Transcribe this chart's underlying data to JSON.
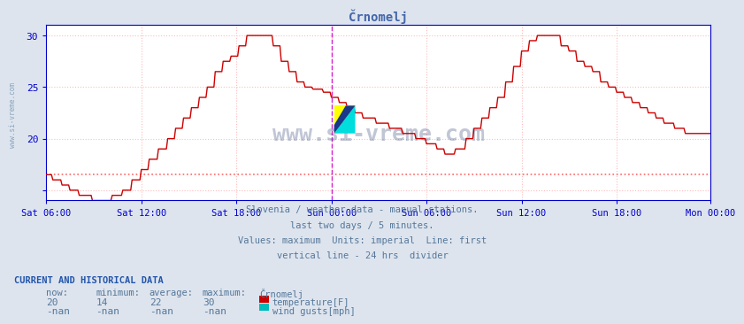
{
  "title": "Črnomelj",
  "title_color": "#4466aa",
  "bg_color": "#dde4ee",
  "plot_bg_color": "#ffffff",
  "grid_color": "#ffaaaa",
  "ylim": [
    14,
    31
  ],
  "ytick_vals": [
    15,
    20,
    25,
    30
  ],
  "ytick_labels": [
    "",
    "20",
    "25",
    "30"
  ],
  "axis_color": "#0000cc",
  "tick_label_color": "#557799",
  "xtick_labels": [
    "Sat 06:00",
    "Sat 12:00",
    "Sat 18:00",
    "Sun 00:00",
    "Sun 06:00",
    "Sun 12:00",
    "Sun 18:00",
    "Mon 00:00"
  ],
  "line_color": "#cc0000",
  "avg_line_color": "#ff6666",
  "avg_line_y": 16.5,
  "divider_color": "#cc00cc",
  "watermark_color": "#334477",
  "watermark_text": "www.si-vreme.com",
  "side_text": "www.si-vreme.com",
  "subtitle_lines": [
    "Slovenia / weather data - manual stations.",
    "last two days / 5 minutes.",
    "Values: maximum  Units: imperial  Line: first",
    "vertical line - 24 hrs  divider"
  ],
  "footer_title": "CURRENT AND HISTORICAL DATA",
  "footer_cols": [
    "now:",
    "minimum:",
    "average:",
    "maximum:",
    "Črnomelj"
  ],
  "footer_row1_vals": [
    "20",
    "14",
    "22",
    "30"
  ],
  "footer_row1_label": "temperature[F]",
  "footer_row2_vals": [
    "-nan",
    "-nan",
    "-nan",
    "-nan"
  ],
  "footer_row2_label": "wind gusts[mph]",
  "temp_color": "#cc0000",
  "wind_color": "#00bbbb"
}
